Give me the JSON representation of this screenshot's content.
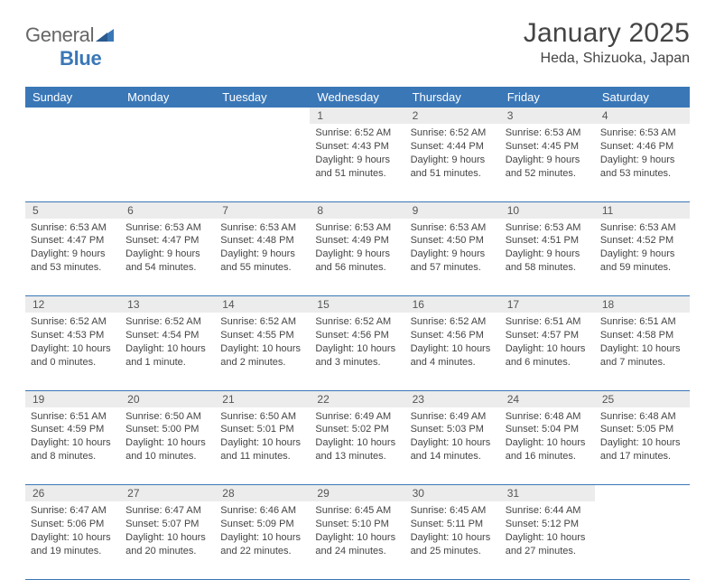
{
  "brand": {
    "general": "General",
    "blue": "Blue"
  },
  "title": "January 2025",
  "location": "Heda, Shizuoka, Japan",
  "colors": {
    "header_bg": "#3a77b7",
    "daynum_bg": "#ececec",
    "rule": "#3a77b7",
    "text": "#444444",
    "background": "#ffffff"
  },
  "weekdays": [
    "Sunday",
    "Monday",
    "Tuesday",
    "Wednesday",
    "Thursday",
    "Friday",
    "Saturday"
  ],
  "weeks": [
    [
      null,
      null,
      null,
      {
        "n": "1",
        "sunrise": "6:52 AM",
        "sunset": "4:43 PM",
        "daylight": "9 hours and 51 minutes."
      },
      {
        "n": "2",
        "sunrise": "6:52 AM",
        "sunset": "4:44 PM",
        "daylight": "9 hours and 51 minutes."
      },
      {
        "n": "3",
        "sunrise": "6:53 AM",
        "sunset": "4:45 PM",
        "daylight": "9 hours and 52 minutes."
      },
      {
        "n": "4",
        "sunrise": "6:53 AM",
        "sunset": "4:46 PM",
        "daylight": "9 hours and 53 minutes."
      }
    ],
    [
      {
        "n": "5",
        "sunrise": "6:53 AM",
        "sunset": "4:47 PM",
        "daylight": "9 hours and 53 minutes."
      },
      {
        "n": "6",
        "sunrise": "6:53 AM",
        "sunset": "4:47 PM",
        "daylight": "9 hours and 54 minutes."
      },
      {
        "n": "7",
        "sunrise": "6:53 AM",
        "sunset": "4:48 PM",
        "daylight": "9 hours and 55 minutes."
      },
      {
        "n": "8",
        "sunrise": "6:53 AM",
        "sunset": "4:49 PM",
        "daylight": "9 hours and 56 minutes."
      },
      {
        "n": "9",
        "sunrise": "6:53 AM",
        "sunset": "4:50 PM",
        "daylight": "9 hours and 57 minutes."
      },
      {
        "n": "10",
        "sunrise": "6:53 AM",
        "sunset": "4:51 PM",
        "daylight": "9 hours and 58 minutes."
      },
      {
        "n": "11",
        "sunrise": "6:53 AM",
        "sunset": "4:52 PM",
        "daylight": "9 hours and 59 minutes."
      }
    ],
    [
      {
        "n": "12",
        "sunrise": "6:52 AM",
        "sunset": "4:53 PM",
        "daylight": "10 hours and 0 minutes."
      },
      {
        "n": "13",
        "sunrise": "6:52 AM",
        "sunset": "4:54 PM",
        "daylight": "10 hours and 1 minute."
      },
      {
        "n": "14",
        "sunrise": "6:52 AM",
        "sunset": "4:55 PM",
        "daylight": "10 hours and 2 minutes."
      },
      {
        "n": "15",
        "sunrise": "6:52 AM",
        "sunset": "4:56 PM",
        "daylight": "10 hours and 3 minutes."
      },
      {
        "n": "16",
        "sunrise": "6:52 AM",
        "sunset": "4:56 PM",
        "daylight": "10 hours and 4 minutes."
      },
      {
        "n": "17",
        "sunrise": "6:51 AM",
        "sunset": "4:57 PM",
        "daylight": "10 hours and 6 minutes."
      },
      {
        "n": "18",
        "sunrise": "6:51 AM",
        "sunset": "4:58 PM",
        "daylight": "10 hours and 7 minutes."
      }
    ],
    [
      {
        "n": "19",
        "sunrise": "6:51 AM",
        "sunset": "4:59 PM",
        "daylight": "10 hours and 8 minutes."
      },
      {
        "n": "20",
        "sunrise": "6:50 AM",
        "sunset": "5:00 PM",
        "daylight": "10 hours and 10 minutes."
      },
      {
        "n": "21",
        "sunrise": "6:50 AM",
        "sunset": "5:01 PM",
        "daylight": "10 hours and 11 minutes."
      },
      {
        "n": "22",
        "sunrise": "6:49 AM",
        "sunset": "5:02 PM",
        "daylight": "10 hours and 13 minutes."
      },
      {
        "n": "23",
        "sunrise": "6:49 AM",
        "sunset": "5:03 PM",
        "daylight": "10 hours and 14 minutes."
      },
      {
        "n": "24",
        "sunrise": "6:48 AM",
        "sunset": "5:04 PM",
        "daylight": "10 hours and 16 minutes."
      },
      {
        "n": "25",
        "sunrise": "6:48 AM",
        "sunset": "5:05 PM",
        "daylight": "10 hours and 17 minutes."
      }
    ],
    [
      {
        "n": "26",
        "sunrise": "6:47 AM",
        "sunset": "5:06 PM",
        "daylight": "10 hours and 19 minutes."
      },
      {
        "n": "27",
        "sunrise": "6:47 AM",
        "sunset": "5:07 PM",
        "daylight": "10 hours and 20 minutes."
      },
      {
        "n": "28",
        "sunrise": "6:46 AM",
        "sunset": "5:09 PM",
        "daylight": "10 hours and 22 minutes."
      },
      {
        "n": "29",
        "sunrise": "6:45 AM",
        "sunset": "5:10 PM",
        "daylight": "10 hours and 24 minutes."
      },
      {
        "n": "30",
        "sunrise": "6:45 AM",
        "sunset": "5:11 PM",
        "daylight": "10 hours and 25 minutes."
      },
      {
        "n": "31",
        "sunrise": "6:44 AM",
        "sunset": "5:12 PM",
        "daylight": "10 hours and 27 minutes."
      },
      null
    ]
  ],
  "labels": {
    "sunrise": "Sunrise:",
    "sunset": "Sunset:",
    "daylight": "Daylight:"
  }
}
